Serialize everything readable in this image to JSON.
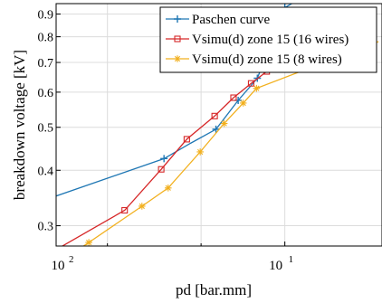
{
  "chart_data": {
    "type": "line",
    "xscale": "log",
    "yscale": "log",
    "xlim": [
      0.75,
      1.13
    ],
    "ylim": [
      0.27,
      0.95
    ],
    "xlabel": "pd [bar.mm]",
    "ylabel": "breakdown voltage [kV]",
    "x_ticks": [
      {
        "value": 1.0,
        "label": "10",
        "exp": "1"
      }
    ],
    "x_minor_ticks": [
      0.8,
      0.9
    ],
    "x_left_label": {
      "label": "10",
      "exp": "2"
    },
    "y_ticks": [
      {
        "value": 0.3,
        "label": "0.3"
      },
      {
        "value": 0.4,
        "label": "0.4"
      },
      {
        "value": 0.5,
        "label": "0.5"
      },
      {
        "value": 0.6,
        "label": "0.6"
      },
      {
        "value": 0.7,
        "label": "0.7"
      },
      {
        "value": 0.8,
        "label": "0.8"
      },
      {
        "value": 0.9,
        "label": "0.9"
      }
    ],
    "grid": true,
    "legend_position": "top-right",
    "series": [
      {
        "name": "Paschen curve",
        "color": "#1f77b4",
        "marker": "plus",
        "x": [
          0.75,
          0.859,
          0.888,
          0.917,
          0.943,
          0.966,
          1.0,
          1.13
        ],
        "y": [
          0.35,
          0.425,
          0.46,
          0.495,
          0.575,
          0.645,
          0.93,
          1.25
        ],
        "marker_indices": [
          1,
          3,
          4,
          5,
          6
        ]
      },
      {
        "name": "Vsimu(d) zone 15 (16 wires)",
        "color": "#d62728",
        "marker": "square",
        "x": [
          0.75,
          0.8175,
          0.856,
          0.884,
          0.9155,
          0.9375,
          0.9585,
          0.9775,
          1.115
        ],
        "y": [
          0.265,
          0.325,
          0.402,
          0.47,
          0.53,
          0.583,
          0.628,
          0.668,
          0.775
        ],
        "marker_indices": [
          1,
          2,
          3,
          4,
          5,
          6,
          7,
          8
        ]
      },
      {
        "name": "Vsimu(d)  zone 15 (8 wires)",
        "color": "#f2b01e",
        "marker": "star",
        "x": [
          0.75,
          0.7815,
          0.8355,
          0.8635,
          0.899,
          0.9265,
          0.949,
          0.965,
          1.125
        ],
        "y": [
          0.245,
          0.275,
          0.332,
          0.365,
          0.44,
          0.51,
          0.567,
          0.612,
          0.78
        ],
        "marker_indices": [
          1,
          2,
          3,
          4,
          5,
          6,
          7
        ]
      }
    ]
  }
}
